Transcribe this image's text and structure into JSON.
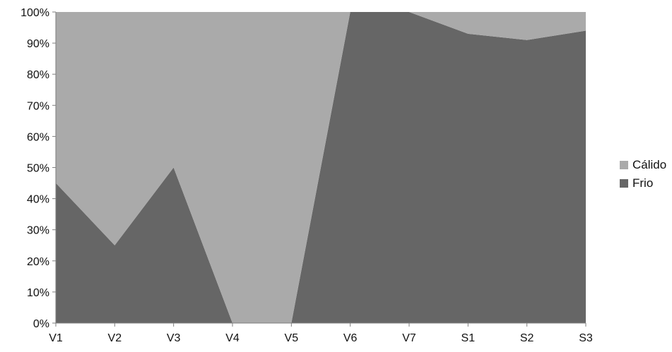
{
  "chart_data": {
    "type": "area",
    "stacking": "percent",
    "categories": [
      "V1",
      "V2",
      "V3",
      "V4",
      "V5",
      "V6",
      "V7",
      "S1",
      "S2",
      "S3"
    ],
    "series": [
      {
        "name": "Frio",
        "color": "#666666",
        "values": [
          45,
          25,
          50,
          0,
          0,
          100,
          100,
          93,
          91,
          94
        ]
      },
      {
        "name": "Cálido",
        "color": "#aaaaaa",
        "values": [
          55,
          75,
          50,
          100,
          100,
          0,
          0,
          7,
          9,
          6
        ]
      }
    ],
    "ylim": [
      0,
      100
    ],
    "yticks": [
      "0%",
      "10%",
      "20%",
      "30%",
      "40%",
      "50%",
      "60%",
      "70%",
      "80%",
      "90%",
      "100%"
    ],
    "grid": false,
    "legend_position": "right",
    "legend": [
      {
        "label": "Cálido",
        "color": "#aaaaaa"
      },
      {
        "label": "Frio",
        "color": "#666666"
      }
    ]
  }
}
